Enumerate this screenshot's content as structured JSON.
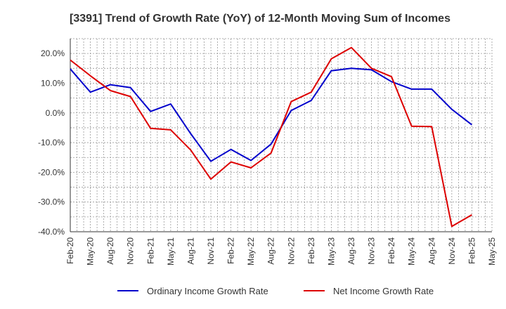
{
  "chart_data": {
    "type": "line",
    "title": "[3391]  Trend of Growth Rate (YoY) of 12-Month Moving Sum of Incomes",
    "xlabel": "",
    "ylabel": "",
    "ylim": [
      -40,
      25
    ],
    "yticks": [
      "20.0%",
      "10.0%",
      "0.0%",
      "-10.0%",
      "-20.0%",
      "-30.0%",
      "-40.0%"
    ],
    "ytick_values": [
      20,
      10,
      0,
      -10,
      -20,
      -30,
      -40
    ],
    "x": [
      "Feb-20",
      "May-20",
      "Aug-20",
      "Nov-20",
      "Feb-21",
      "May-21",
      "Aug-21",
      "Nov-21",
      "Feb-22",
      "May-22",
      "Aug-22",
      "Nov-22",
      "Feb-23",
      "May-23",
      "Aug-23",
      "Nov-23",
      "Feb-24",
      "May-24",
      "Aug-24",
      "Nov-24",
      "Feb-25",
      "May-25"
    ],
    "grid": true,
    "legend_position": "bottom",
    "series": [
      {
        "name": "Ordinary Income Growth Rate",
        "color": "#0000cc",
        "values": [
          14.8,
          7.0,
          9.5,
          8.5,
          0.5,
          3.0,
          -7.0,
          -16.3,
          -12.3,
          -16.0,
          -10.5,
          0.8,
          4.2,
          14.2,
          15.0,
          14.5,
          10.5,
          8.0,
          8.0,
          1.2,
          -4.0,
          null
        ]
      },
      {
        "name": "Net Income Growth Rate",
        "color": "#dd0000",
        "values": [
          17.8,
          12.5,
          7.5,
          5.5,
          -5.2,
          -5.7,
          -12.5,
          -22.3,
          -16.5,
          -18.5,
          -13.5,
          3.8,
          7.0,
          18.2,
          22.0,
          15.0,
          12.2,
          -4.5,
          -4.6,
          -38.2,
          -34.3,
          null
        ]
      }
    ]
  }
}
